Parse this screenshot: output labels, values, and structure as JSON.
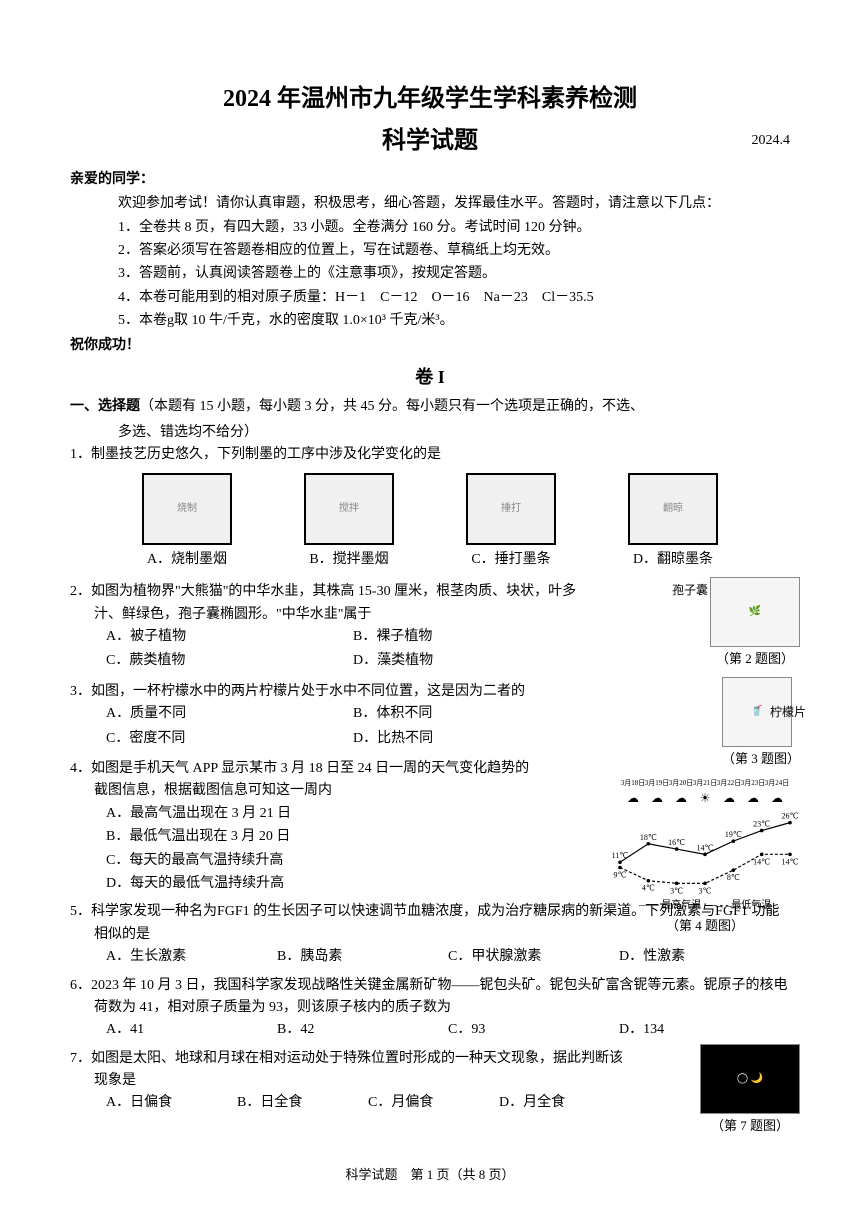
{
  "header": {
    "title_main": "2024 年温州市九年级学生学科素养检测",
    "title_sub": "科学试题",
    "date": "2024.4"
  },
  "greeting": "亲爱的同学：",
  "instructions": {
    "intro": "欢迎参加考试！请你认真审题，积极思考，细心答题，发挥最佳水平。答题时，请注意以下几点：",
    "items": [
      "1．全卷共 8 页，有四大题，33 小题。全卷满分 160 分。考试时间 120 分钟。",
      "2．答案必须写在答题卷相应的位置上，写在试题卷、草稿纸上均无效。",
      "3．答题前，认真阅读答题卷上的《注意事项》，按规定答题。",
      "4．本卷可能用到的相对原子质量：H－1　C－12　O－16　Na－23　Cl－35.5",
      "5．本卷g取 10 牛/千克，水的密度取 1.0×10³ 千克/米³。"
    ]
  },
  "wish": "祝你成功！",
  "section": "卷 I",
  "part_header": {
    "bold": "一、选择题",
    "rest": "（本题有 15 小题，每小题 3 分，共 45 分。每小题只有一个选项是正确的，不选、",
    "cont": "多选、错选均不给分）"
  },
  "q1": {
    "text": "1．制墨技艺历史悠久，下列制墨的工序中涉及化学变化的是",
    "options": [
      "A．烧制墨烟",
      "B．搅拌墨烟",
      "C．捶打墨条",
      "D．翻晾墨条"
    ],
    "fig_alts": [
      "烧制",
      "搅拌",
      "捶打",
      "翻晾"
    ]
  },
  "q2": {
    "text": "2．如图为植物界\"大熊猫\"的中华水韭，其株高 15-30 厘米，根茎肉质、块状，叶多汁、鲜绿色，孢子囊椭圆形。\"中华水韭\"属于",
    "opts": {
      "a": "A．被子植物",
      "b": "B．裸子植物",
      "c": "C．蕨类植物",
      "d": "D．藻类植物"
    },
    "fig_caption": "（第 2 题图）",
    "label": "孢子囊"
  },
  "q3": {
    "text": "3．如图，一杯柠檬水中的两片柠檬片处于水中不同位置，这是因为二者的",
    "opts": {
      "a": "A．质量不同",
      "b": "B．体积不同",
      "c": "C．密度不同",
      "d": "D．比热不同"
    },
    "fig_caption": "（第 3 题图）",
    "label": "柠檬片"
  },
  "q4": {
    "text": "4．如图是手机天气 APP 显示某市 3 月 18 日至 24 日一周的天气变化趋势的截图信息，根据截图信息可知这一周内",
    "opts": {
      "a": "A．最高气温出现在 3 月 21 日",
      "b": "B．最低气温出现在 3 月 20 日",
      "c": "C．每天的最高气温持续升高",
      "d": "D．每天的最低气温持续升高"
    },
    "fig_caption": "（第 4 题图）",
    "chart": {
      "type": "line-dual",
      "dates": [
        "3月18日",
        "3月19日",
        "3月20日",
        "3月21日",
        "3月22日",
        "3月23日",
        "3月24日"
      ],
      "weather_icons": [
        "☁",
        "☁",
        "☁",
        "☀",
        "☁",
        "☁",
        "☁"
      ],
      "high_values": [
        11,
        18,
        16,
        14,
        19,
        23,
        26
      ],
      "high_labels": [
        "11℃",
        "18℃",
        "16℃",
        "14℃",
        "19℃",
        "23℃",
        "26℃"
      ],
      "low_values": [
        9,
        4,
        3,
        3,
        8,
        14,
        14
      ],
      "low_labels": [
        "9℃",
        "4℃",
        "3℃",
        "3℃",
        "8℃",
        "14℃",
        "14℃"
      ],
      "legend_high": "最高气温",
      "legend_low": "最低气温",
      "line_color": "#000000",
      "high_style": "solid",
      "low_style": "dashed",
      "width": 180,
      "height": 100
    }
  },
  "q5": {
    "text": "5．科学家发现一种名为FGF1 的生长因子可以快速调节血糖浓度，成为治疗糖尿病的新渠道。下列激素与FGF1 功能相似的是",
    "opts": {
      "a": "A．生长激素",
      "b": "B．胰岛素",
      "c": "C．甲状腺激素",
      "d": "D．性激素"
    }
  },
  "q6": {
    "text": "6．2023 年 10 月 3 日，我国科学家发现战略性关键金属新矿物——铌包头矿。铌包头矿富含铌等元素。铌原子的核电荷数为 41，相对原子质量为 93，则该原子核内的质子数为",
    "opts": {
      "a": "A．41",
      "b": "B．42",
      "c": "C．93",
      "d": "D．134"
    }
  },
  "q7": {
    "text": "7．如图是太阳、地球和月球在相对运动处于特殊位置时形成的一种天文现象，据此判断该现象是",
    "opts": {
      "a": "A．日偏食",
      "b": "B．日全食",
      "c": "C．月偏食",
      "d": "D．月全食"
    },
    "fig_caption": "（第 7 题图）"
  },
  "footer": "科学试题　第 1 页（共 8 页）"
}
